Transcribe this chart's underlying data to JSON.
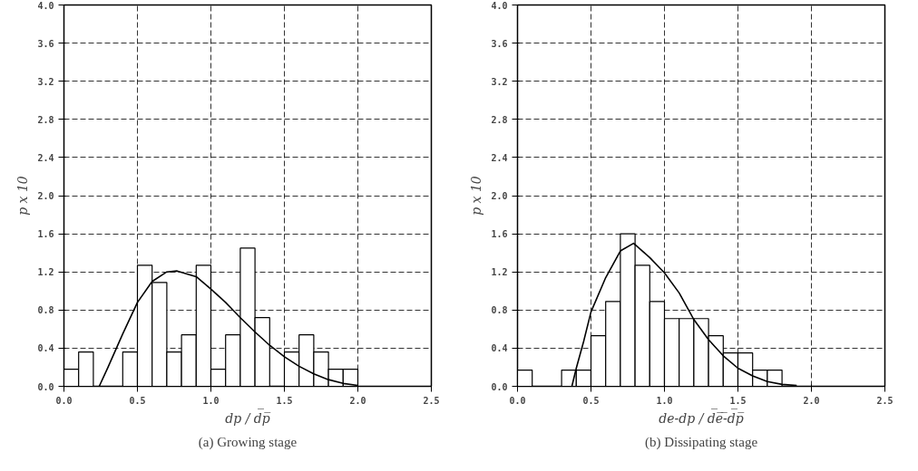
{
  "chart_data": [
    {
      "type": "histogram",
      "title": "(a) Growing stage",
      "xlabel": "dp / d̅p̅",
      "ylabel": "p x 10",
      "bins": [
        0,
        0.1,
        0.2,
        0.3,
        0.4,
        0.5,
        0.6,
        0.7,
        0.8,
        0.9,
        1.0,
        1.1,
        1.2,
        1.3,
        1.4,
        1.5,
        1.6,
        1.7,
        1.8,
        1.9,
        2.0
      ],
      "values": [
        0.18,
        0.36,
        0,
        0,
        0.36,
        1.27,
        1.09,
        0.36,
        0.54,
        1.27,
        0.18,
        0.54,
        1.45,
        0.72,
        0,
        0.36,
        0.54,
        0.36,
        0.18,
        0.18
      ],
      "color": "#ffffff",
      "series": [
        {
          "type": "line",
          "color": "#000000",
          "x": [
            0.24,
            0.3,
            0.4,
            0.5,
            0.6,
            0.7,
            0.77,
            0.9,
            1.0,
            1.1,
            1.2,
            1.3,
            1.4,
            1.5,
            1.6,
            1.7,
            1.8,
            1.9,
            2.0
          ],
          "values": [
            0,
            0.2,
            0.55,
            0.88,
            1.1,
            1.2,
            1.21,
            1.15,
            1.02,
            0.88,
            0.72,
            0.57,
            0.43,
            0.31,
            0.21,
            0.13,
            0.07,
            0.03,
            0.01
          ]
        }
      ],
      "xlim": [
        0,
        2.5
      ],
      "ylim": [
        0,
        4.0
      ],
      "xticks": [
        {
          "value": 0,
          "label": "0.0"
        },
        0.5,
        {
          "value": 1,
          "label": "1.0"
        },
        1.5,
        {
          "value": 2,
          "label": "2.0"
        },
        2.5
      ],
      "yticks": [
        {
          "value": 0,
          "label": "0.0"
        },
        0.4,
        0.8,
        1.2,
        1.6,
        {
          "value": 2,
          "label": "2.0"
        },
        2.4,
        2.8,
        3.2,
        3.6,
        {
          "value": 4,
          "label": "4.0"
        }
      ],
      "grid": true
    },
    {
      "type": "histogram",
      "title": "(b) Dissipating stage",
      "xlabel": "de-dp / d̅e̅-̅d̅p̅",
      "ylabel": "p x 10",
      "bins": [
        0,
        0.1,
        0.2,
        0.3,
        0.4,
        0.5,
        0.6,
        0.7,
        0.8,
        0.9,
        1.0,
        1.1,
        1.2,
        1.3,
        1.4,
        1.5,
        1.6,
        1.7,
        1.8
      ],
      "values": [
        0.17,
        0,
        0,
        0.17,
        0.17,
        0.53,
        0.89,
        1.6,
        1.27,
        0.89,
        0.71,
        0.71,
        0.71,
        0.53,
        0.35,
        0.35,
        0.17,
        0.17
      ],
      "color": "#ffffff",
      "series": [
        {
          "type": "line",
          "color": "#000000",
          "x": [
            0.37,
            0.4,
            0.45,
            0.5,
            0.6,
            0.7,
            0.79,
            0.9,
            1.0,
            1.1,
            1.2,
            1.3,
            1.4,
            1.5,
            1.6,
            1.7,
            1.8,
            1.9
          ],
          "values": [
            0,
            0.19,
            0.47,
            0.78,
            1.14,
            1.42,
            1.5,
            1.35,
            1.19,
            0.98,
            0.7,
            0.49,
            0.32,
            0.19,
            0.11,
            0.05,
            0.02,
            0.01
          ]
        }
      ],
      "xlim": [
        0,
        2.5
      ],
      "ylim": [
        0,
        4.0
      ],
      "xticks": [
        {
          "value": 0,
          "label": "0.0"
        },
        0.5,
        {
          "value": 1,
          "label": "1.0"
        },
        1.5,
        {
          "value": 2,
          "label": "2.0"
        },
        2.5
      ],
      "yticks": [
        {
          "value": 0,
          "label": "0.0"
        },
        0.4,
        0.8,
        1.2,
        1.6,
        {
          "value": 2,
          "label": "2.0"
        },
        2.4,
        2.8,
        3.2,
        3.6,
        {
          "value": 4,
          "label": "4.0"
        }
      ],
      "grid": true
    }
  ]
}
